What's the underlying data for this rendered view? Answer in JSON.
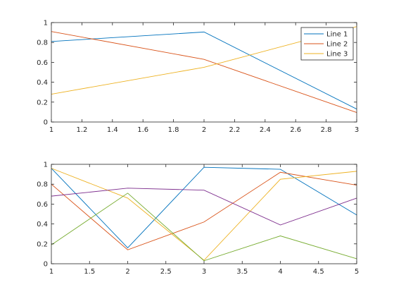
{
  "chart_data": [
    {
      "type": "line",
      "title": "",
      "xlabel": "",
      "ylabel": "",
      "xlim": [
        1,
        3
      ],
      "ylim": [
        0,
        1
      ],
      "xticks": [
        "1",
        "1.2",
        "1.4",
        "1.6",
        "1.8",
        "2",
        "2.2",
        "2.4",
        "2.6",
        "2.8",
        "3"
      ],
      "yticks": [
        "0",
        "0.2",
        "0.4",
        "0.6",
        "0.8",
        "1"
      ],
      "grid": false,
      "legend_position": "top-right",
      "x": [
        1,
        2,
        3
      ],
      "series": [
        {
          "name": "Line 1",
          "color": "#0072bd",
          "values": [
            0.81,
            0.905,
            0.13
          ]
        },
        {
          "name": "Line 2",
          "color": "#d95319",
          "values": [
            0.91,
            0.63,
            0.095
          ]
        },
        {
          "name": "Line 3",
          "color": "#edb120",
          "values": [
            0.28,
            0.55,
            0.96
          ]
        }
      ]
    },
    {
      "type": "line",
      "title": "",
      "xlabel": "",
      "ylabel": "",
      "xlim": [
        1,
        5
      ],
      "ylim": [
        0,
        1
      ],
      "xticks": [
        "1",
        "1.5",
        "2",
        "2.5",
        "3",
        "3.5",
        "4",
        "4.5",
        "5"
      ],
      "yticks": [
        "0",
        "0.2",
        "0.4",
        "0.6",
        "0.8",
        "1"
      ],
      "grid": false,
      "x": [
        1,
        2,
        3,
        4,
        5
      ],
      "series": [
        {
          "color": "#0072bd",
          "values": [
            0.96,
            0.16,
            0.97,
            0.95,
            0.49
          ]
        },
        {
          "color": "#d95319",
          "values": [
            0.8,
            0.14,
            0.42,
            0.92,
            0.79
          ]
        },
        {
          "color": "#edb120",
          "values": [
            0.96,
            0.66,
            0.035,
            0.85,
            0.93
          ]
        },
        {
          "color": "#7e2f8e",
          "values": [
            0.68,
            0.76,
            0.74,
            0.39,
            0.66
          ]
        },
        {
          "color": "#77ac30",
          "values": [
            0.19,
            0.71,
            0.03,
            0.28,
            0.05
          ]
        }
      ]
    }
  ]
}
